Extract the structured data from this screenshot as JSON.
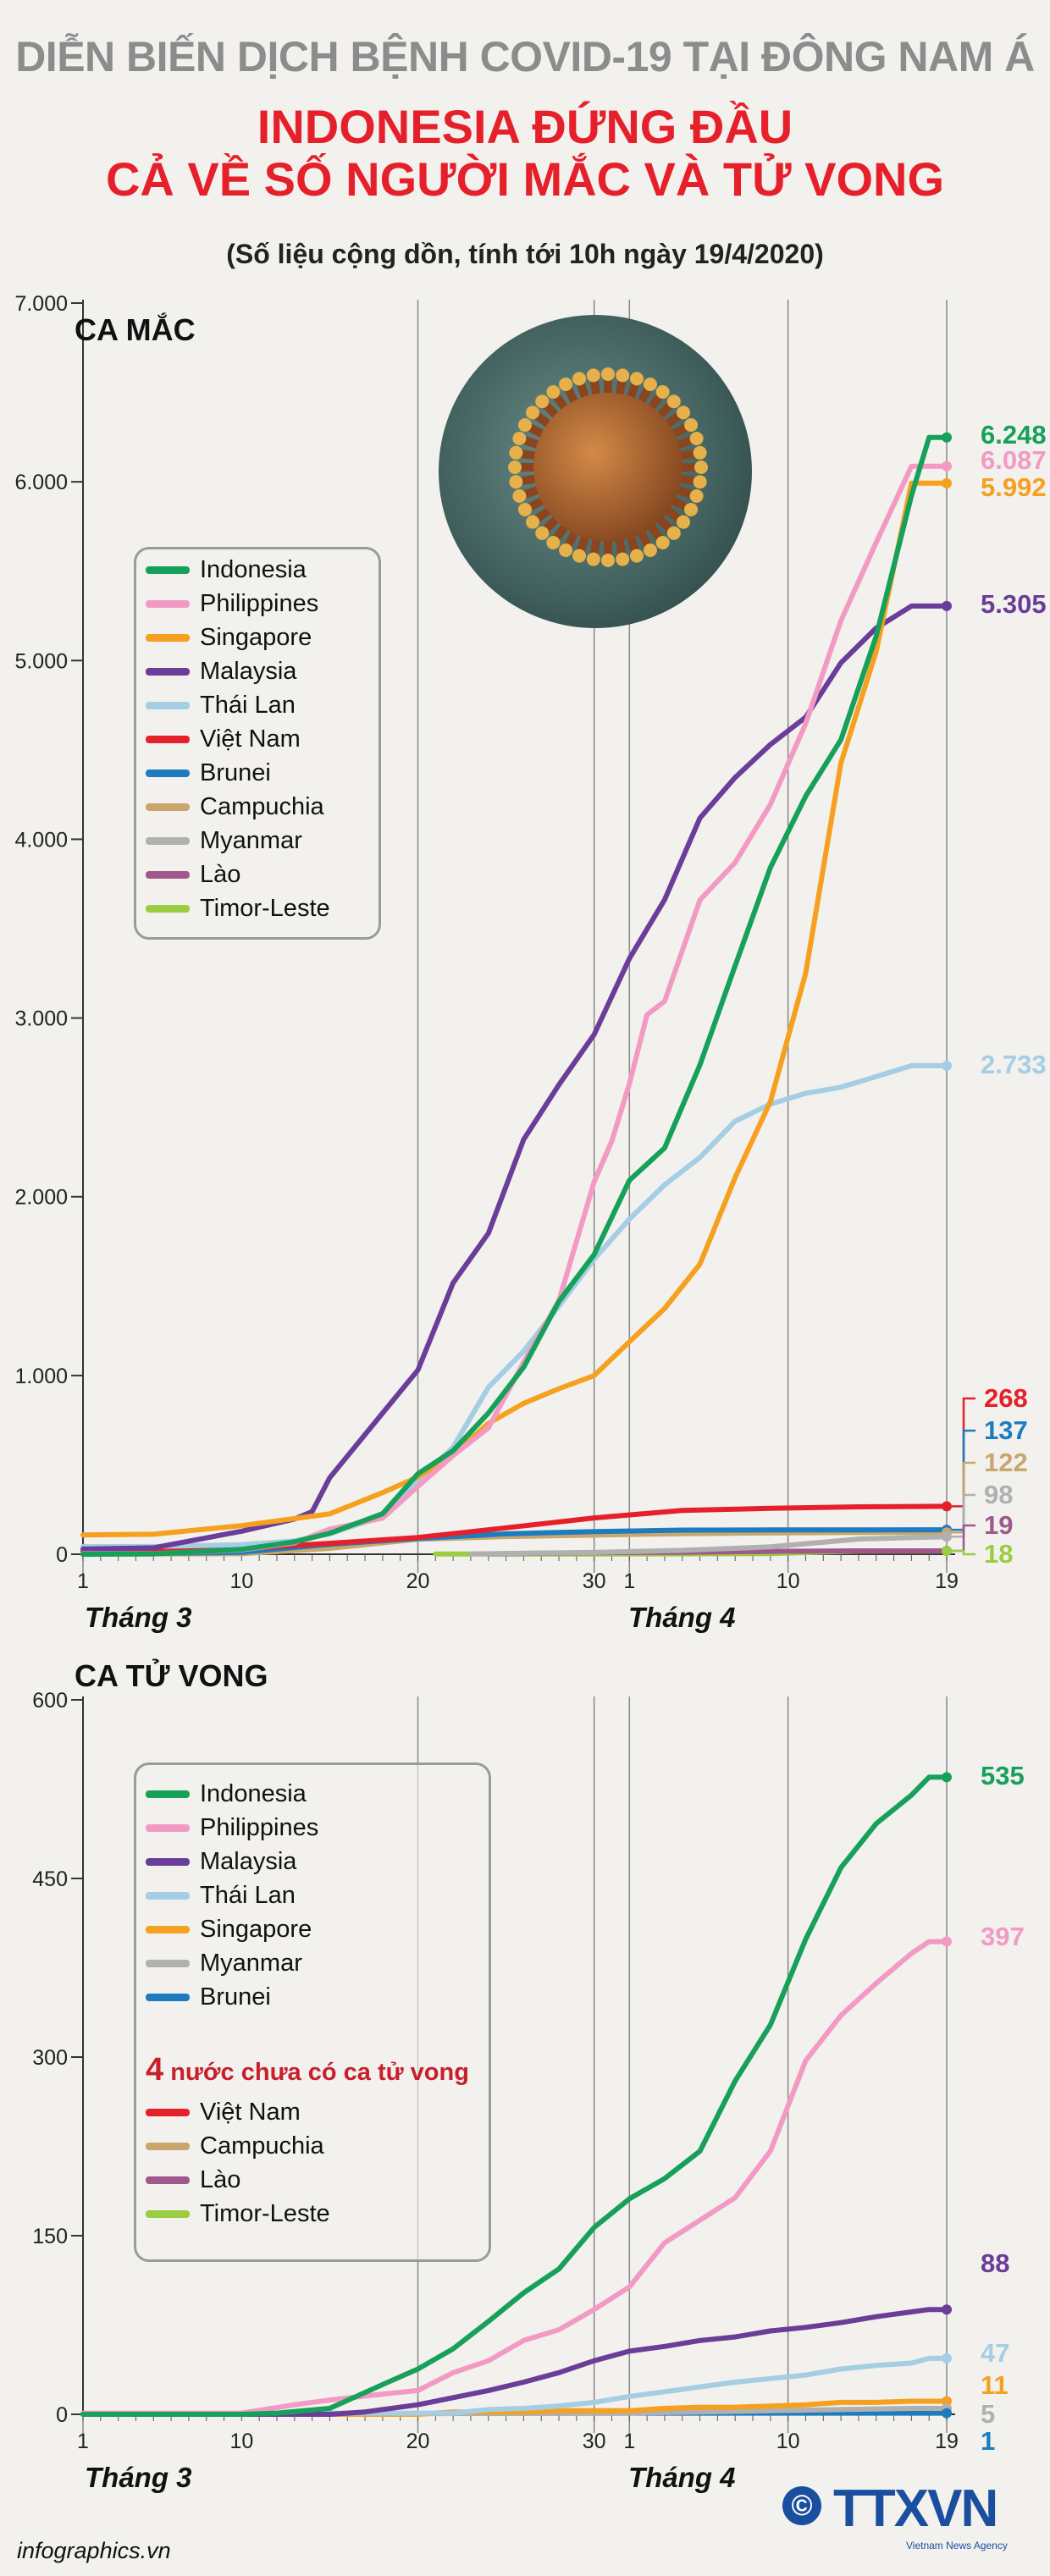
{
  "header": {
    "title": "DIỄN BIẾN DỊCH BỆNH COVID-19 TẠI ĐÔNG NAM Á",
    "headline_line1": "INDONESIA ĐỨNG ĐẦU",
    "headline_line2": "CẢ VỀ SỐ NGƯỜI MẮC VÀ TỬ VONG",
    "subtitle": "(Số liệu cộng dồn, tính tới 10h ngày 19/4/2020)"
  },
  "x_axis": {
    "ticks": [
      {
        "label": "1",
        "day": 1
      },
      {
        "label": "10",
        "day": 10
      },
      {
        "label": "20",
        "day": 20
      },
      {
        "label": "30",
        "day": 30
      },
      {
        "label": "1",
        "day": 32
      },
      {
        "label": "10",
        "day": 41
      },
      {
        "label": "19",
        "day": 50
      }
    ],
    "month3": "Tháng 3",
    "month4": "Tháng 4",
    "gridlines": [
      1,
      20,
      30,
      32,
      41,
      50
    ]
  },
  "chart_data": [
    {
      "type": "line",
      "title": "CA MẮC",
      "ylim": [
        0,
        7000
      ],
      "yticks": [
        {
          "value": 0,
          "label": "0"
        },
        {
          "value": 1000,
          "label": "1.000"
        },
        {
          "value": 2000,
          "label": "2.000"
        },
        {
          "value": 3000,
          "label": "3.000"
        },
        {
          "value": 4000,
          "label": "4.000"
        },
        {
          "value": 5000,
          "label": "5.000"
        },
        {
          "value": 6000,
          "label": "6.000"
        },
        {
          "value": 7000,
          "label": "7.000"
        }
      ],
      "series": [
        {
          "name": "Indonesia",
          "color": "#16a05a",
          "final": 6248,
          "final_label": "6.248",
          "x": [
            1,
            5,
            10,
            13,
            15,
            18,
            20,
            22,
            24,
            26,
            28,
            30,
            32,
            34,
            36,
            38,
            40,
            42,
            44,
            46,
            48,
            49,
            50
          ],
          "y": [
            0,
            2,
            27,
            69,
            117,
            227,
            450,
            579,
            790,
            1046,
            1414,
            1677,
            2092,
            2273,
            2738,
            3293,
            3842,
            4241,
            4557,
            5136,
            5923,
            6248,
            6248
          ]
        },
        {
          "name": "Philippines",
          "color": "#f29ac4",
          "final": 6087,
          "final_label": "6.087",
          "x": [
            1,
            5,
            10,
            13,
            15,
            18,
            20,
            22,
            24,
            26,
            28,
            30,
            31,
            32,
            33,
            34,
            36,
            38,
            40,
            42,
            44,
            46,
            48,
            49,
            50
          ],
          "y": [
            3,
            3,
            24,
            64,
            140,
            202,
            380,
            552,
            707,
            1075,
            1418,
            2084,
            2311,
            2633,
            3018,
            3094,
            3660,
            3870,
            4195,
            4648,
            5223,
            5660,
            6087,
            6087,
            6087
          ]
        },
        {
          "name": "Singapore",
          "color": "#f5a01e",
          "final": 5992,
          "final_label": "5.992",
          "x": [
            1,
            5,
            10,
            15,
            18,
            20,
            22,
            24,
            26,
            28,
            30,
            32,
            34,
            36,
            38,
            40,
            42,
            44,
            46,
            48,
            49,
            50
          ],
          "y": [
            108,
            112,
            160,
            226,
            345,
            432,
            558,
            732,
            844,
            926,
            1000,
            1189,
            1375,
            1623,
            2108,
            2532,
            3252,
            4427,
            5050,
            5992,
            5992,
            5992
          ]
        },
        {
          "name": "Malaysia",
          "color": "#6a3d98",
          "final": 5305,
          "final_label": "5.305",
          "x": [
            1,
            5,
            10,
            13,
            14,
            15,
            18,
            20,
            22,
            24,
            26,
            28,
            30,
            32,
            34,
            36,
            38,
            40,
            42,
            44,
            46,
            48,
            49,
            50
          ],
          "y": [
            29,
            36,
            129,
            197,
            238,
            428,
            790,
            1030,
            1518,
            1796,
            2320,
            2626,
            2908,
            3333,
            3662,
            4119,
            4346,
            4530,
            4683,
            4987,
            5182,
            5305,
            5305,
            5305
          ]
        },
        {
          "name": "Thái Lan",
          "color": "#a5cde3",
          "final": 2733,
          "final_label": "2.733",
          "x": [
            1,
            5,
            10,
            13,
            15,
            18,
            20,
            22,
            24,
            26,
            28,
            30,
            32,
            34,
            36,
            38,
            40,
            42,
            44,
            46,
            48,
            49,
            50
          ],
          "y": [
            42,
            43,
            53,
            75,
            114,
            212,
            411,
            599,
            934,
            1136,
            1388,
            1651,
            1875,
            2067,
            2220,
            2423,
            2518,
            2579,
            2613,
            2672,
            2733,
            2733,
            2733
          ]
        },
        {
          "name": "Việt Nam",
          "color": "#e5202a",
          "final": 268,
          "final_label": "268",
          "x": [
            1,
            10,
            15,
            20,
            25,
            30,
            35,
            40,
            45,
            50
          ],
          "y": [
            16,
            31,
            61,
            94,
            148,
            203,
            245,
            257,
            265,
            268
          ]
        },
        {
          "name": "Brunei",
          "color": "#1d7cc0",
          "final": 137,
          "final_label": "137",
          "x": [
            1,
            10,
            15,
            20,
            25,
            30,
            35,
            40,
            45,
            50
          ],
          "y": [
            0,
            11,
            56,
            88,
            114,
            127,
            135,
            136,
            136,
            137
          ]
        },
        {
          "name": "Campuchia",
          "color": "#c9a66b",
          "final": 122,
          "final_label": "122",
          "x": [
            1,
            10,
            15,
            20,
            25,
            30,
            35,
            40,
            45,
            50
          ],
          "y": [
            1,
            3,
            33,
            84,
            99,
            107,
            115,
            119,
            122,
            122
          ]
        },
        {
          "name": "Myanmar",
          "color": "#b0b0b0",
          "final": 98,
          "final_label": "98",
          "x": [
            23,
            30,
            35,
            40,
            45,
            50
          ],
          "y": [
            2,
            10,
            22,
            41,
            85,
            98
          ]
        },
        {
          "name": "Lào",
          "color": "#a0588c",
          "final": 19,
          "final_label": "19",
          "x": [
            24,
            30,
            35,
            40,
            45,
            50
          ],
          "y": [
            2,
            9,
            11,
            16,
            19,
            19
          ]
        },
        {
          "name": "Timor-Leste",
          "color": "#9acd42",
          "final": 18,
          "final_label": "18",
          "x": [
            21,
            30,
            35,
            40,
            45,
            50
          ],
          "y": [
            1,
            1,
            2,
            4,
            18,
            18
          ]
        }
      ]
    },
    {
      "type": "line",
      "title": "CA TỬ VONG",
      "ylim": [
        0,
        600
      ],
      "yticks": [
        {
          "value": 0,
          "label": "0"
        },
        {
          "value": 150,
          "label": "150"
        },
        {
          "value": 300,
          "label": "300"
        },
        {
          "value": 450,
          "label": "450"
        },
        {
          "value": 600,
          "label": "600"
        }
      ],
      "series": [
        {
          "name": "Indonesia",
          "color": "#16a05a",
          "final": 535,
          "final_label": "535",
          "x": [
            1,
            10,
            12,
            15,
            18,
            20,
            22,
            24,
            26,
            28,
            30,
            32,
            34,
            36,
            38,
            40,
            42,
            44,
            46,
            48,
            49,
            50
          ],
          "y": [
            0,
            0,
            1,
            5,
            25,
            38,
            55,
            78,
            102,
            122,
            157,
            181,
            198,
            221,
            280,
            327,
            399,
            459,
            496,
            520,
            535,
            535
          ]
        },
        {
          "name": "Philippines",
          "color": "#f29ac4",
          "final": 397,
          "final_label": "397",
          "x": [
            1,
            10,
            13,
            15,
            18,
            20,
            22,
            24,
            26,
            28,
            30,
            32,
            34,
            36,
            38,
            40,
            42,
            44,
            46,
            48,
            49,
            50
          ],
          "y": [
            1,
            1,
            8,
            12,
            17,
            20,
            35,
            45,
            62,
            71,
            88,
            107,
            144,
            163,
            182,
            221,
            297,
            335,
            362,
            387,
            397,
            397
          ]
        },
        {
          "name": "Malaysia",
          "color": "#6a3d98",
          "final": 88,
          "final_label": "88",
          "x": [
            1,
            15,
            17,
            20,
            22,
            24,
            26,
            28,
            30,
            32,
            34,
            36,
            38,
            40,
            42,
            44,
            46,
            48,
            49,
            50
          ],
          "y": [
            0,
            0,
            2,
            8,
            14,
            20,
            27,
            35,
            45,
            53,
            57,
            62,
            65,
            70,
            73,
            77,
            82,
            86,
            88,
            88
          ]
        },
        {
          "name": "Thái Lan",
          "color": "#a5cde3",
          "final": 47,
          "final_label": "47",
          "x": [
            1,
            12,
            15,
            18,
            20,
            22,
            24,
            26,
            28,
            30,
            32,
            34,
            36,
            38,
            40,
            42,
            44,
            46,
            48,
            49,
            50
          ],
          "y": [
            0,
            1,
            1,
            1,
            1,
            1,
            4,
            5,
            7,
            10,
            15,
            19,
            23,
            27,
            30,
            33,
            38,
            41,
            43,
            47,
            47
          ]
        },
        {
          "name": "Singapore",
          "color": "#f5a01e",
          "final": 11,
          "final_label": "11",
          "x": [
            1,
            20,
            22,
            24,
            26,
            28,
            30,
            32,
            34,
            36,
            38,
            40,
            42,
            44,
            46,
            48,
            49,
            50
          ],
          "y": [
            0,
            0,
            2,
            2,
            2,
            3,
            3,
            3,
            5,
            6,
            6,
            7,
            8,
            10,
            10,
            11,
            11,
            11
          ]
        },
        {
          "name": "Myanmar",
          "color": "#b0b0b0",
          "final": 5,
          "final_label": "5",
          "x": [
            1,
            32,
            36,
            40,
            44,
            48,
            50
          ],
          "y": [
            0,
            1,
            2,
            3,
            4,
            5,
            5
          ]
        },
        {
          "name": "Brunei",
          "color": "#1d7cc0",
          "final": 1,
          "final_label": "1",
          "x": [
            1,
            28,
            50
          ],
          "y": [
            0,
            1,
            1
          ]
        }
      ],
      "no_death_note": "nước chưa có ca tử vong",
      "no_death_count": "4",
      "no_death_countries": [
        {
          "name": "Việt Nam",
          "color": "#e5202a"
        },
        {
          "name": "Campuchia",
          "color": "#c9a66b"
        },
        {
          "name": "Lào",
          "color": "#a0588c"
        },
        {
          "name": "Timor-Leste",
          "color": "#9acd42"
        }
      ]
    }
  ],
  "footer": {
    "source": "infographics.vn",
    "copyright": "©",
    "logo": "TTXVN",
    "logo_sub": "Vietnam News Agency"
  }
}
